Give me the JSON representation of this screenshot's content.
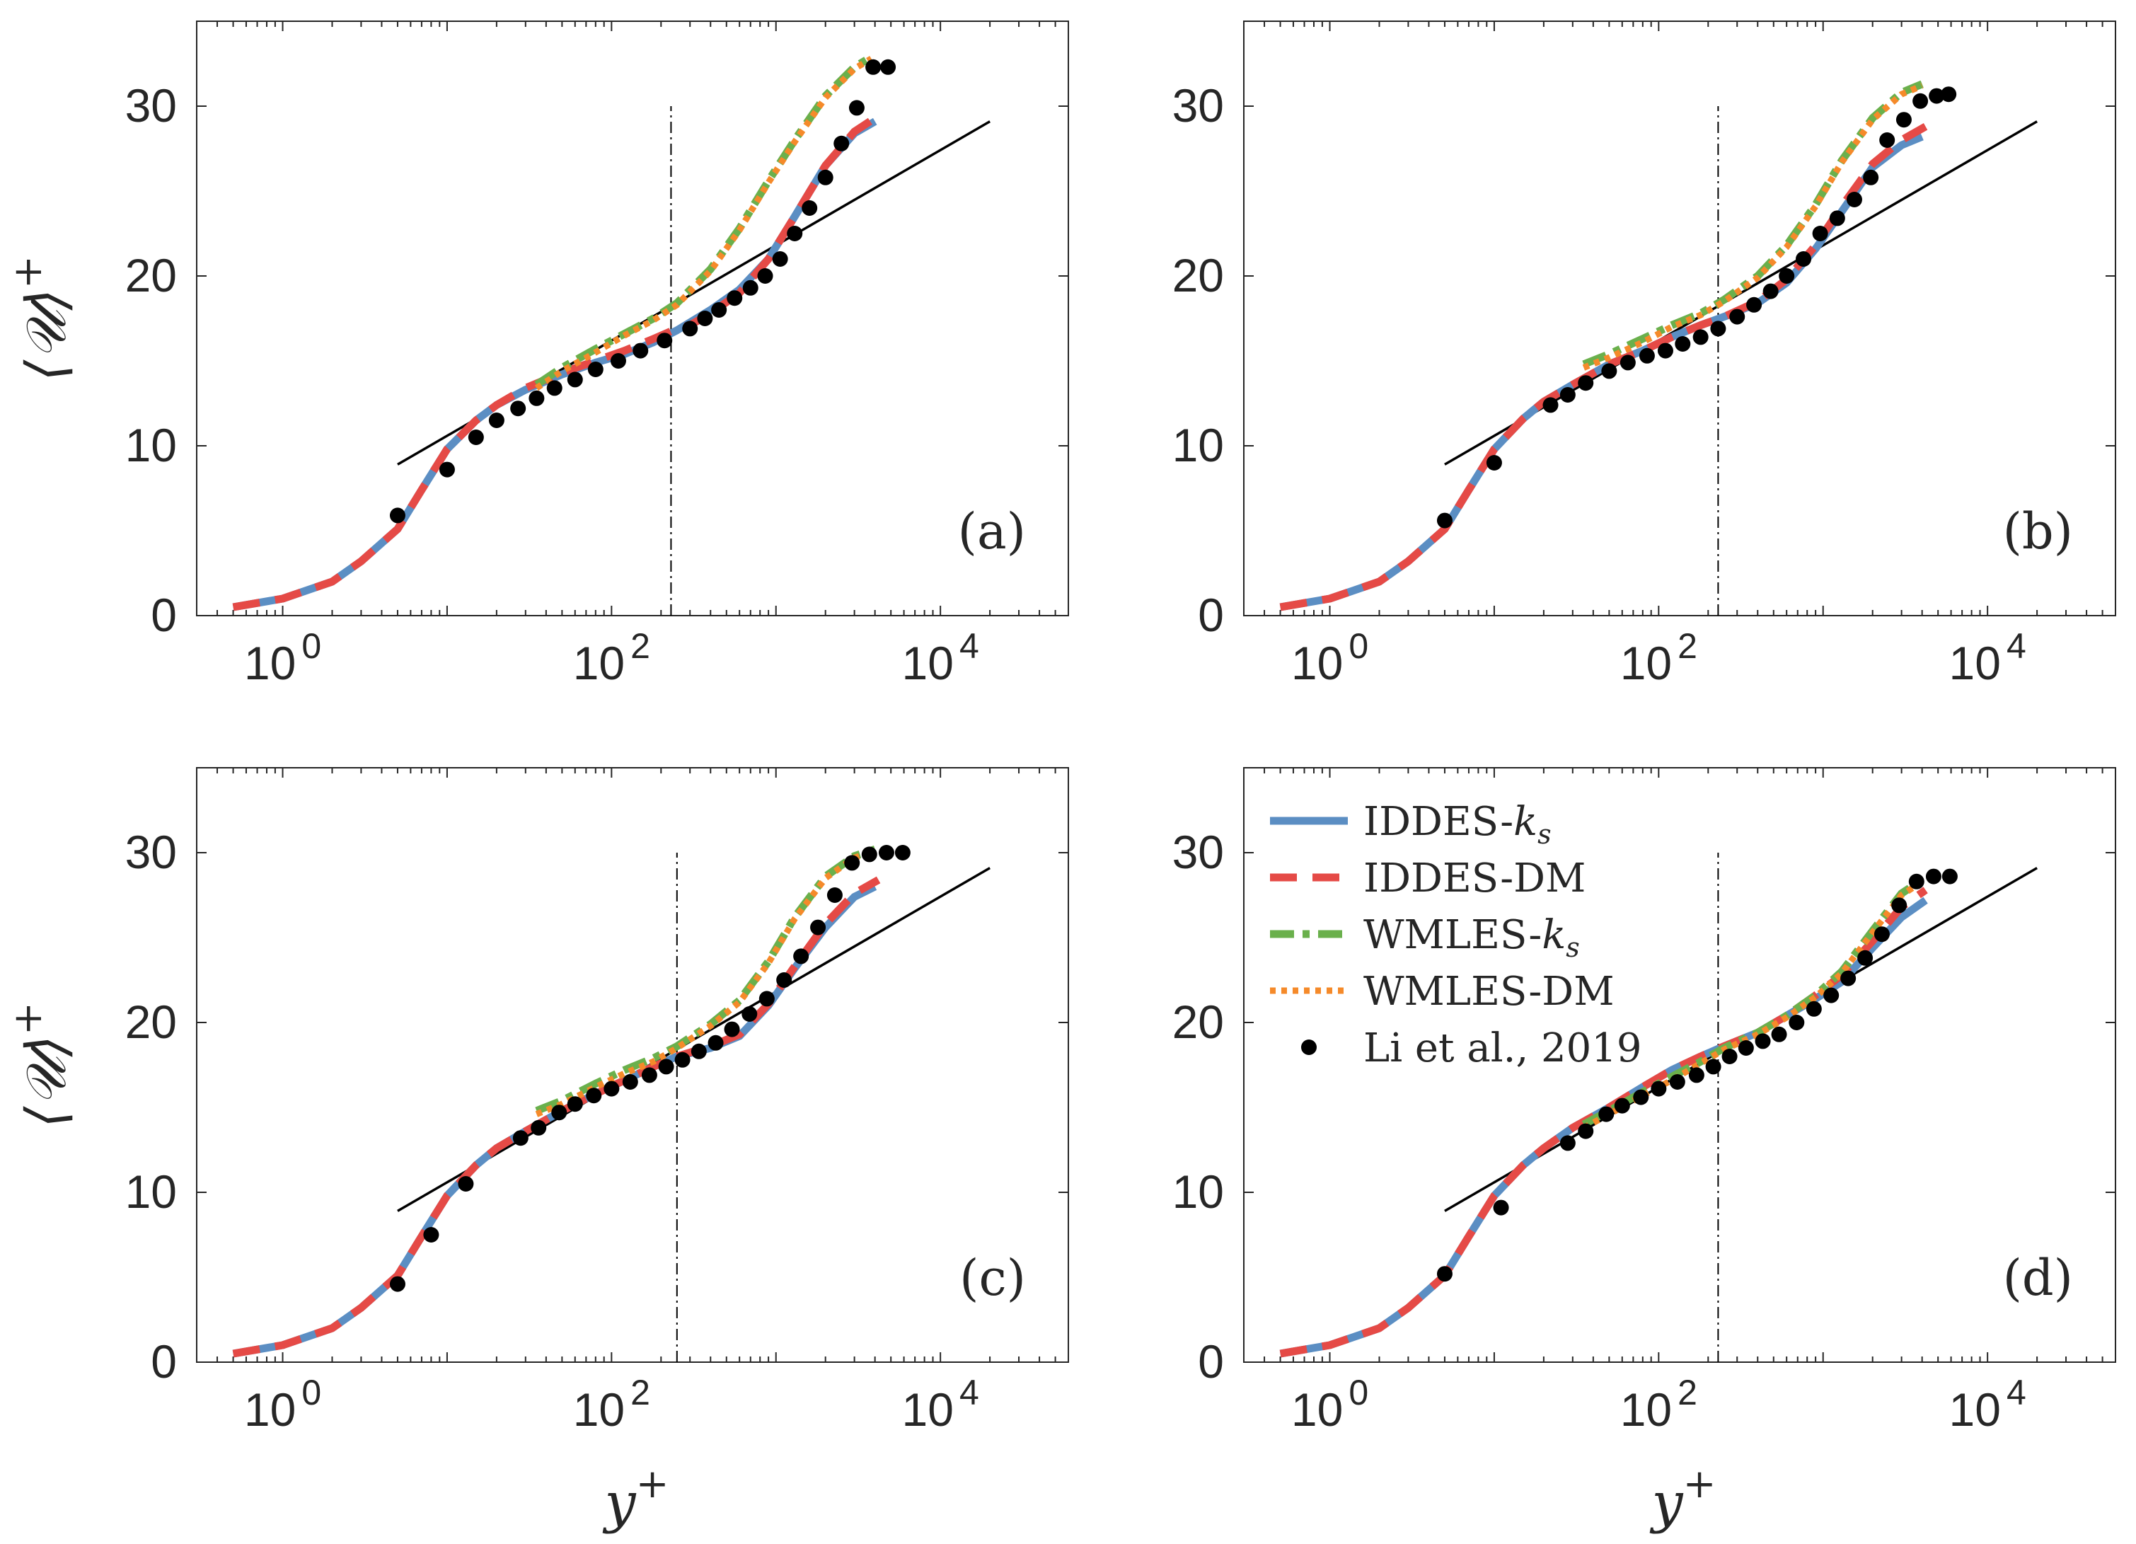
{
  "figure": {
    "ylabel": "⟨𝒰⟩",
    "ylabel_sup": "+",
    "xlabel": "y",
    "xlabel_sup": "+"
  },
  "legend": {
    "panel": "d",
    "entries": [
      {
        "key": "iddes_ks",
        "label": "IDDES-",
        "sub": "k",
        "subsub": "s",
        "color": "#5b8ec3",
        "style": "solid"
      },
      {
        "key": "iddes_dm",
        "label": "IDDES-DM",
        "sub": "",
        "subsub": "",
        "color": "#e54a46",
        "style": "dashed"
      },
      {
        "key": "wmles_ks",
        "label": "WMLES-",
        "sub": "k",
        "subsub": "s",
        "color": "#6ab04c",
        "style": "dashdot"
      },
      {
        "key": "wmles_dm",
        "label": "WMLES-DM",
        "sub": "",
        "subsub": "",
        "color": "#f58a2a",
        "style": "dotted"
      },
      {
        "key": "li",
        "label": "Li et al., 2019",
        "sub": "",
        "subsub": "",
        "color": "#000000",
        "style": "marker"
      }
    ]
  },
  "chart_data": [
    {
      "id": "a",
      "panel_label": "(a)",
      "type": "line",
      "xscale": "log",
      "xlim": [
        0.3,
        60000
      ],
      "ylim": [
        0,
        35
      ],
      "xticks": [
        1,
        100,
        10000
      ],
      "xtick_labels": [
        "10",
        "10",
        "10"
      ],
      "xtick_exps": [
        "0",
        "2",
        "4"
      ],
      "yticks": [
        0,
        10,
        20,
        30
      ],
      "ytick_labels": [
        "0",
        "10",
        "20",
        "30"
      ],
      "vline_x": 230,
      "vline_ymax": 30,
      "log_law": {
        "x": [
          5,
          20000
        ],
        "y": [
          8.9,
          29.1
        ]
      },
      "series": [
        {
          "key": "iddes_ks",
          "x": [
            0.5,
            1,
            2,
            3,
            5,
            7,
            10,
            15,
            20,
            30,
            50,
            80,
            120,
            180,
            250,
            400,
            600,
            900,
            1300,
            2000,
            3000,
            4000
          ],
          "y": [
            0.5,
            1.0,
            2.0,
            3.2,
            5.1,
            7.4,
            9.8,
            11.5,
            12.4,
            13.3,
            14.2,
            14.9,
            15.4,
            16.1,
            16.8,
            18.0,
            19.2,
            21.0,
            23.5,
            26.5,
            28.4,
            29.1
          ]
        },
        {
          "key": "iddes_dm",
          "x": [
            0.5,
            1,
            2,
            3,
            5,
            7,
            10,
            15,
            20,
            30,
            50,
            80,
            120,
            180,
            250,
            300,
            400,
            600,
            900,
            1300,
            2000,
            3000,
            4000
          ],
          "y": [
            0.5,
            1.0,
            2.0,
            3.2,
            5.1,
            7.4,
            9.8,
            11.5,
            12.4,
            13.4,
            14.3,
            15.0,
            15.6,
            16.3,
            16.9,
            17.1,
            17.8,
            19.0,
            21.0,
            23.5,
            26.5,
            28.5,
            29.3
          ]
        },
        {
          "key": "wmles_ks",
          "x": [
            35,
            50,
            80,
            120,
            180,
            250,
            400,
            600,
            900,
            1300,
            2000,
            3000,
            3800
          ],
          "y": [
            13.6,
            14.6,
            15.7,
            16.6,
            17.5,
            18.4,
            20.4,
            22.8,
            25.6,
            28.0,
            30.6,
            32.3,
            32.9
          ]
        },
        {
          "key": "wmles_dm",
          "x": [
            35,
            50,
            80,
            120,
            180,
            250,
            400,
            600,
            900,
            1300,
            2000,
            3000,
            3800
          ],
          "y": [
            13.4,
            14.4,
            15.5,
            16.5,
            17.4,
            18.3,
            20.3,
            22.7,
            25.5,
            27.9,
            30.5,
            32.2,
            32.8
          ]
        },
        {
          "key": "li",
          "x": [
            5,
            10,
            15,
            20,
            27,
            35,
            45,
            60,
            80,
            110,
            150,
            210,
            300,
            370,
            450,
            560,
            700,
            860,
            1060,
            1300,
            1600,
            2000,
            2500,
            3100,
            3900,
            4800
          ],
          "y": [
            5.9,
            8.6,
            10.5,
            11.5,
            12.2,
            12.8,
            13.4,
            13.9,
            14.5,
            15.0,
            15.6,
            16.2,
            16.9,
            17.5,
            18.0,
            18.7,
            19.3,
            20.0,
            21.0,
            22.5,
            24.0,
            25.8,
            27.8,
            29.9,
            32.3,
            32.3
          ]
        }
      ]
    },
    {
      "id": "b",
      "panel_label": "(b)",
      "type": "line",
      "xscale": "log",
      "xlim": [
        0.3,
        60000
      ],
      "ylim": [
        0,
        35
      ],
      "xticks": [
        1,
        100,
        10000
      ],
      "xtick_labels": [
        "10",
        "10",
        "10"
      ],
      "xtick_exps": [
        "0",
        "2",
        "4"
      ],
      "yticks": [
        0,
        10,
        20,
        30
      ],
      "ytick_labels": [
        "0",
        "10",
        "20",
        "30"
      ],
      "vline_x": 230,
      "vline_ymax": 30,
      "log_law": {
        "x": [
          5,
          20000
        ],
        "y": [
          8.9,
          29.1
        ]
      },
      "series": [
        {
          "key": "iddes_ks",
          "x": [
            0.5,
            1,
            2,
            3,
            5,
            7,
            10,
            15,
            20,
            30,
            50,
            80,
            120,
            180,
            250,
            400,
            600,
            900,
            1300,
            2000,
            3000,
            4000
          ],
          "y": [
            0.5,
            1.0,
            2.0,
            3.2,
            5.1,
            7.4,
            9.8,
            11.6,
            12.6,
            13.6,
            14.8,
            15.6,
            16.4,
            17.1,
            17.6,
            18.4,
            19.6,
            21.6,
            23.8,
            26.4,
            27.7,
            28.2
          ]
        },
        {
          "key": "iddes_dm",
          "x": [
            0.5,
            1,
            2,
            3,
            5,
            7,
            10,
            15,
            20,
            30,
            50,
            80,
            120,
            180,
            250,
            400,
            600,
            900,
            1300,
            2000,
            3000,
            4200
          ],
          "y": [
            0.5,
            1.0,
            2.0,
            3.2,
            5.1,
            7.4,
            9.8,
            11.6,
            12.6,
            13.6,
            14.8,
            15.6,
            16.4,
            17.1,
            17.6,
            18.5,
            19.8,
            21.8,
            24.1,
            26.6,
            28.0,
            28.8
          ]
        },
        {
          "key": "wmles_ks",
          "x": [
            35,
            50,
            80,
            120,
            180,
            250,
            400,
            600,
            900,
            1300,
            2000,
            3000,
            4000
          ],
          "y": [
            14.8,
            15.4,
            16.3,
            17.1,
            17.8,
            18.6,
            20.0,
            21.8,
            24.2,
            26.8,
            29.3,
            30.8,
            31.3
          ]
        },
        {
          "key": "wmles_dm",
          "x": [
            35,
            50,
            80,
            120,
            180,
            250,
            400,
            600,
            900,
            1300,
            2000,
            3000,
            4000
          ],
          "y": [
            14.6,
            15.2,
            16.1,
            17.0,
            17.7,
            18.5,
            19.9,
            21.7,
            24.1,
            26.7,
            29.2,
            30.7,
            31.2
          ]
        },
        {
          "key": "li",
          "x": [
            5,
            10,
            22,
            28,
            36,
            50,
            65,
            85,
            110,
            140,
            180,
            230,
            300,
            380,
            480,
            600,
            760,
            960,
            1220,
            1550,
            1950,
            2450,
            3100,
            3900,
            4900,
            5800
          ],
          "y": [
            5.6,
            9.0,
            12.4,
            13.0,
            13.7,
            14.4,
            14.9,
            15.3,
            15.6,
            16.0,
            16.4,
            16.9,
            17.6,
            18.3,
            19.1,
            20.0,
            21.0,
            22.5,
            23.4,
            24.5,
            25.8,
            28.0,
            29.2,
            30.3,
            30.6,
            30.7
          ]
        }
      ]
    },
    {
      "id": "c",
      "panel_label": "(c)",
      "type": "line",
      "xscale": "log",
      "xlim": [
        0.3,
        60000
      ],
      "ylim": [
        0,
        35
      ],
      "xticks": [
        1,
        100,
        10000
      ],
      "xtick_labels": [
        "10",
        "10",
        "10"
      ],
      "xtick_exps": [
        "0",
        "2",
        "4"
      ],
      "yticks": [
        0,
        10,
        20,
        30
      ],
      "ytick_labels": [
        "0",
        "10",
        "20",
        "30"
      ],
      "vline_x": 250,
      "vline_ymax": 30,
      "log_law": {
        "x": [
          5,
          20000
        ],
        "y": [
          8.9,
          29.1
        ]
      },
      "series": [
        {
          "key": "iddes_ks",
          "x": [
            0.5,
            1,
            2,
            3,
            5,
            7,
            10,
            15,
            20,
            30,
            50,
            80,
            120,
            180,
            250,
            400,
            600,
            900,
            1300,
            2000,
            3000,
            4000
          ],
          "y": [
            0.5,
            1.0,
            2.0,
            3.2,
            5.1,
            7.4,
            9.8,
            11.6,
            12.6,
            13.6,
            14.8,
            15.8,
            16.6,
            17.4,
            18.0,
            18.5,
            19.2,
            21.0,
            23.2,
            25.6,
            27.4,
            28.0
          ]
        },
        {
          "key": "iddes_dm",
          "x": [
            0.5,
            1,
            2,
            3,
            5,
            7,
            10,
            15,
            20,
            30,
            50,
            80,
            120,
            180,
            250,
            400,
            600,
            900,
            1300,
            2000,
            3000,
            4200
          ],
          "y": [
            0.5,
            1.0,
            2.0,
            3.2,
            5.1,
            7.4,
            9.8,
            11.6,
            12.6,
            13.6,
            14.8,
            15.8,
            16.6,
            17.4,
            18.0,
            18.6,
            19.3,
            21.1,
            23.3,
            25.8,
            27.6,
            28.4
          ]
        },
        {
          "key": "wmles_ks",
          "x": [
            35,
            50,
            80,
            120,
            180,
            250,
            400,
            600,
            900,
            1300,
            2000,
            3000,
            4000
          ],
          "y": [
            14.8,
            15.4,
            16.4,
            17.2,
            17.9,
            18.6,
            19.9,
            21.3,
            23.6,
            26.2,
            28.6,
            29.8,
            30.2
          ]
        },
        {
          "key": "wmles_dm",
          "x": [
            35,
            50,
            80,
            120,
            180,
            250,
            400,
            600,
            900,
            1300,
            2000,
            3000,
            4000
          ],
          "y": [
            14.6,
            15.2,
            16.2,
            17.0,
            17.7,
            18.5,
            19.8,
            21.2,
            23.5,
            26.1,
            28.5,
            29.7,
            30.1
          ]
        },
        {
          "key": "li",
          "x": [
            5,
            8,
            13,
            28,
            36,
            48,
            60,
            78,
            100,
            130,
            170,
            215,
            270,
            340,
            430,
            540,
            690,
            880,
            1120,
            1420,
            1800,
            2280,
            2900,
            3700,
            4700,
            5900
          ],
          "y": [
            4.6,
            7.5,
            10.5,
            13.2,
            13.8,
            14.7,
            15.2,
            15.7,
            16.1,
            16.5,
            16.9,
            17.4,
            17.8,
            18.3,
            18.8,
            19.6,
            20.5,
            21.4,
            22.5,
            23.9,
            25.6,
            27.5,
            29.4,
            29.9,
            30.0,
            30.0
          ]
        }
      ]
    },
    {
      "id": "d",
      "panel_label": "(d)",
      "type": "line",
      "xscale": "log",
      "xlim": [
        0.3,
        60000
      ],
      "ylim": [
        0,
        35
      ],
      "xticks": [
        1,
        100,
        10000
      ],
      "xtick_labels": [
        "10",
        "10",
        "10"
      ],
      "xtick_exps": [
        "0",
        "2",
        "4"
      ],
      "yticks": [
        0,
        10,
        20,
        30
      ],
      "ytick_labels": [
        "0",
        "10",
        "20",
        "30"
      ],
      "vline_x": 230,
      "vline_ymax": 30,
      "log_law": {
        "x": [
          5,
          20000
        ],
        "y": [
          8.9,
          29.1
        ]
      },
      "series": [
        {
          "key": "iddes_ks",
          "x": [
            0.5,
            1,
            2,
            3,
            5,
            7,
            10,
            15,
            20,
            30,
            50,
            80,
            120,
            180,
            250,
            400,
            600,
            900,
            1300,
            2000,
            3000,
            4200
          ],
          "y": [
            0.5,
            1.0,
            2.0,
            3.2,
            5.1,
            7.4,
            9.8,
            11.6,
            12.6,
            13.8,
            15.0,
            16.2,
            17.2,
            18.0,
            18.6,
            19.4,
            20.4,
            21.4,
            22.4,
            24.4,
            26.2,
            27.2
          ]
        },
        {
          "key": "iddes_dm",
          "x": [
            0.5,
            1,
            2,
            3,
            5,
            7,
            10,
            15,
            20,
            30,
            50,
            80,
            120,
            180,
            250,
            400,
            600,
            900,
            1300,
            2000,
            3000,
            4200
          ],
          "y": [
            0.5,
            1.0,
            2.0,
            3.2,
            5.1,
            7.4,
            9.8,
            11.6,
            12.6,
            13.8,
            15.0,
            16.2,
            17.2,
            18.0,
            18.6,
            19.4,
            20.4,
            21.6,
            22.8,
            24.8,
            26.8,
            27.8
          ]
        },
        {
          "key": "wmles_ks",
          "x": [
            35,
            50,
            80,
            120,
            180,
            250,
            400,
            600,
            900,
            1300,
            2000,
            3000,
            4000
          ],
          "y": [
            14.0,
            14.8,
            15.9,
            16.8,
            17.7,
            18.5,
            19.4,
            20.4,
            21.6,
            23.0,
            25.4,
            27.6,
            28.4
          ]
        },
        {
          "key": "wmles_dm",
          "x": [
            35,
            50,
            80,
            120,
            180,
            250,
            400,
            600,
            900,
            1300,
            2000,
            3000,
            4000
          ],
          "y": [
            13.8,
            14.6,
            15.7,
            16.6,
            17.6,
            18.4,
            19.3,
            20.3,
            21.5,
            22.9,
            25.3,
            27.5,
            28.3
          ]
        },
        {
          "key": "li",
          "x": [
            5,
            11,
            28,
            36,
            48,
            60,
            78,
            100,
            130,
            170,
            215,
            270,
            340,
            430,
            540,
            690,
            880,
            1120,
            1420,
            1800,
            2280,
            2900,
            3700,
            4700,
            5900
          ],
          "y": [
            5.2,
            9.1,
            12.9,
            13.6,
            14.6,
            15.1,
            15.6,
            16.1,
            16.5,
            16.9,
            17.4,
            18.0,
            18.5,
            18.9,
            19.3,
            20.0,
            20.8,
            21.6,
            22.6,
            23.8,
            25.2,
            26.9,
            28.3,
            28.6,
            28.6
          ]
        }
      ]
    }
  ]
}
